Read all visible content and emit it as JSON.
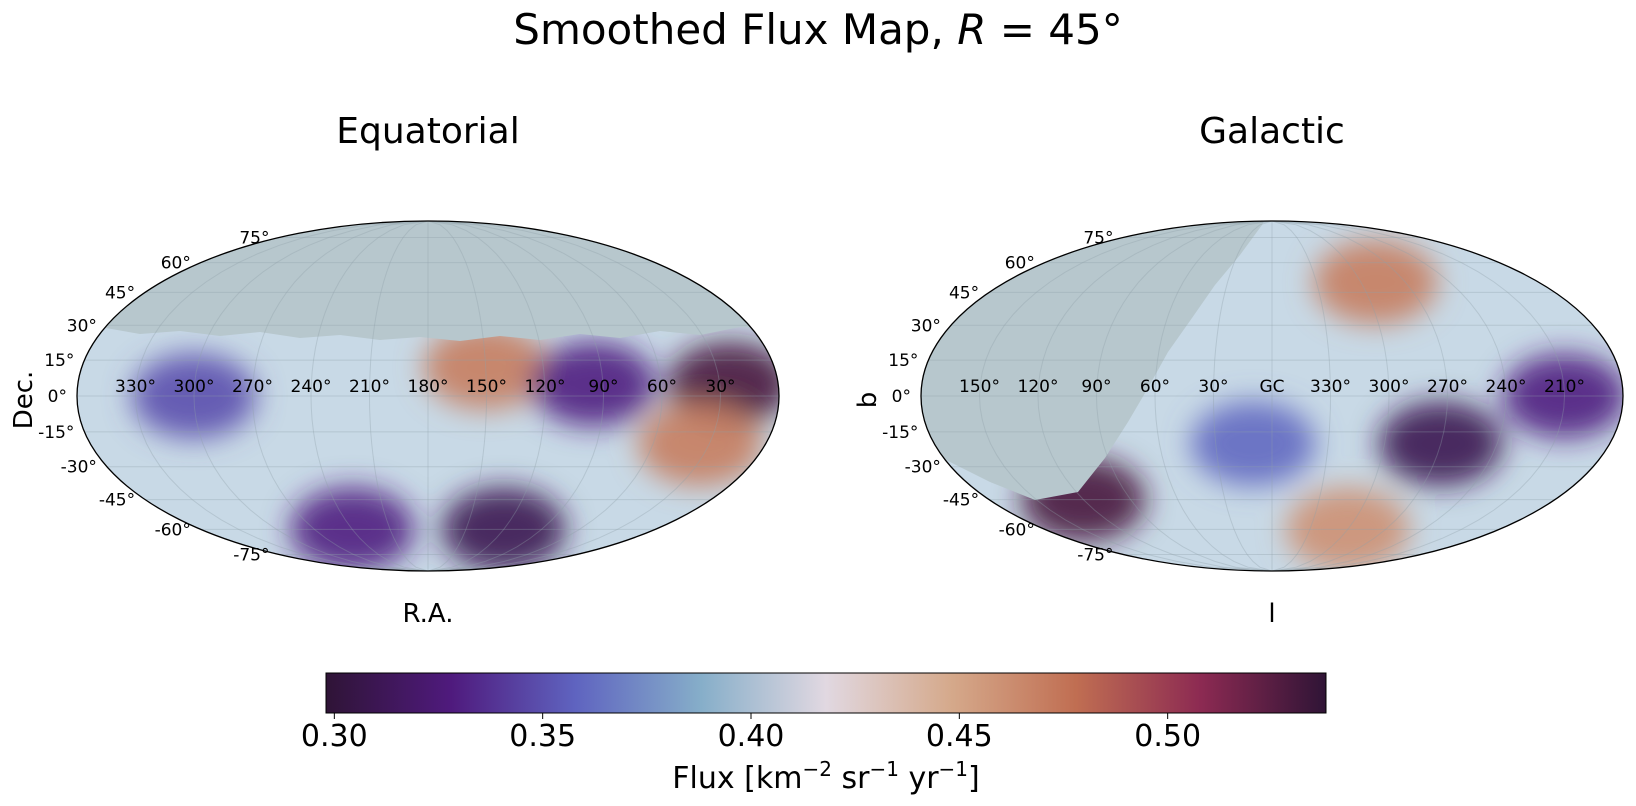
{
  "figure": {
    "title_main": "Smoothed Flux Map, ",
    "title_var": "R",
    "title_eq": " = 45°"
  },
  "chart_data": [
    {
      "type": "heatmap",
      "projection": "mollweide",
      "title": "Equatorial",
      "xlabel": "R.A.",
      "ylabel": "Dec.",
      "x_tick_labels": [
        "330°",
        "300°",
        "270°",
        "240°",
        "210°",
        "180°",
        "150°",
        "120°",
        "90°",
        "60°",
        "30°"
      ],
      "y_tick_labels": [
        "75°",
        "60°",
        "45°",
        "30°",
        "15°",
        "0°",
        "-15°",
        "-30°",
        "-45°",
        "-60°",
        "-75°"
      ],
      "masked_region": "Dec above ~+20° (no data)",
      "mask_color": "#b7c7cd",
      "hotspots": [
        {
          "ra": 25,
          "dec": 5,
          "flux": 0.53
        },
        {
          "ra": 35,
          "dec": -20,
          "flux": 0.47
        },
        {
          "ra": 150,
          "dec": 12,
          "flux": 0.47
        },
        {
          "ra": 120,
          "dec": -60,
          "flux": 0.31
        },
        {
          "ra": 240,
          "dec": -60,
          "flux": 0.33
        },
        {
          "ra": 95,
          "dec": 5,
          "flux": 0.33
        },
        {
          "ra": 300,
          "dec": 0,
          "flux": 0.35
        }
      ]
    },
    {
      "type": "heatmap",
      "projection": "mollweide",
      "title": "Galactic",
      "xlabel": "l",
      "ylabel": "b",
      "x_tick_labels": [
        "150°",
        "120°",
        "90°",
        "60°",
        "30°",
        "GC",
        "330°",
        "300°",
        "270°",
        "240°",
        "210°"
      ],
      "y_tick_labels": [
        "75°",
        "60°",
        "45°",
        "30°",
        "15°",
        "0°",
        "-15°",
        "-30°",
        "-45°",
        "-60°",
        "-75°"
      ],
      "masked_region": "no-data region in galactic coordinates (upper-left)",
      "mask_color": "#b7c7cd",
      "hotspots": [
        {
          "l": 290,
          "b": 50,
          "flux": 0.47
        },
        {
          "l": 120,
          "b": -45,
          "flux": 0.53
        },
        {
          "l": 300,
          "b": -60,
          "flux": 0.46
        },
        {
          "l": 270,
          "b": -20,
          "flux": 0.31
        },
        {
          "l": 210,
          "b": 0,
          "flux": 0.33
        },
        {
          "l": 10,
          "b": -20,
          "flux": 0.36
        }
      ]
    }
  ],
  "colorbar": {
    "colormap": "twilight_shifted",
    "min": 0.298,
    "max": 0.538,
    "ticks": [
      0.3,
      0.35,
      0.4,
      0.45,
      0.5
    ],
    "tick_labels": [
      "0.30",
      "0.35",
      "0.40",
      "0.45",
      "0.50"
    ],
    "label_prefix": "Flux [km",
    "sup1": "−2",
    "mid1": " sr",
    "sup2": "−1",
    "mid2": " yr",
    "sup3": "−1",
    "label_suffix": "]",
    "stops": [
      "#2f1436",
      "#4f1a7d",
      "#5f64c0",
      "#86aec9",
      "#e1d8e1",
      "#d5a98b",
      "#c06e52",
      "#8c2a52",
      "#2f1436"
    ]
  }
}
